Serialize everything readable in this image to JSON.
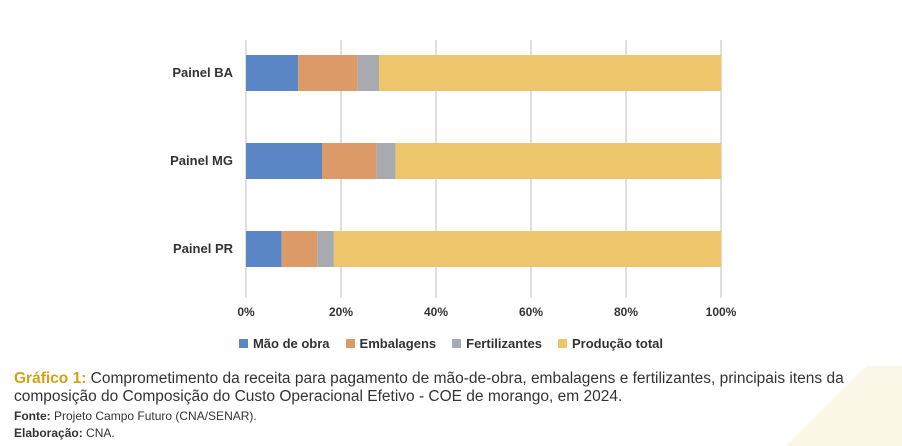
{
  "chart_data": {
    "type": "bar",
    "orientation": "horizontal",
    "stacked": true,
    "categories": [
      "Painel BA",
      "Painel MG",
      "Painel PR"
    ],
    "series": [
      {
        "name": "Mão de obra",
        "color": "#5b86c5",
        "values": [
          11,
          16,
          7.5
        ]
      },
      {
        "name": "Embalagens",
        "color": "#dc9a68",
        "values": [
          12.5,
          11.5,
          7.5
        ]
      },
      {
        "name": "Fertilizantes",
        "color": "#a7abb0",
        "values": [
          4.5,
          4,
          3.5
        ]
      },
      {
        "name": "Produção total",
        "color": "#edc56a",
        "values": [
          72,
          68.5,
          81.5
        ]
      }
    ],
    "xlim": [
      0,
      100
    ],
    "xticks": [
      "0%",
      "20%",
      "40%",
      "60%",
      "80%",
      "100%"
    ],
    "grid": true,
    "legend_position": "bottom"
  },
  "caption": {
    "label": "Gráfico 1:",
    "text": "Comprometimento da receita para pagamento de mão-de-obra, embalagens e fertilizantes, principais itens da composição do Composição do Custo Operacional Efetivo - COE de morango, em 2024.",
    "fonte_label": "Fonte:",
    "fonte_text": "Projeto Campo Futuro (CNA/SENAR).",
    "elaboracao_label": "Elaboração:",
    "elaboracao_text": "CNA."
  }
}
